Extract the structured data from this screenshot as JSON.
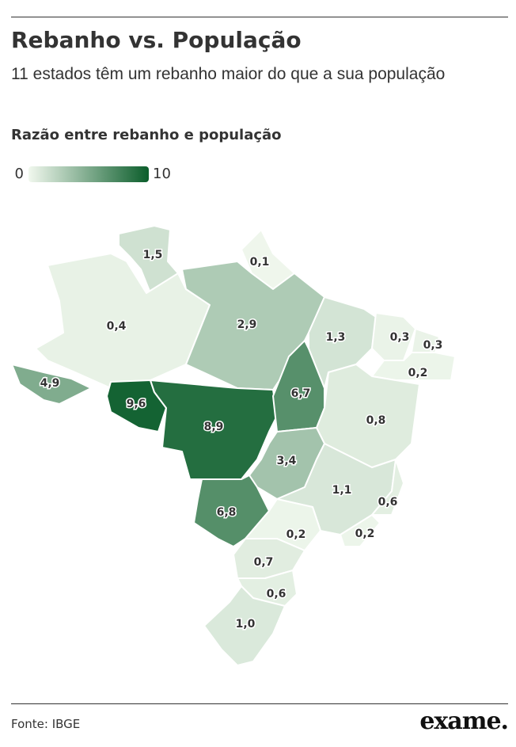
{
  "chart_data": {
    "type": "choropleth",
    "title": "Rebanho vs. População",
    "subtitle": "11 estados têm um rebanho maior do que a sua população",
    "legend_title": "Razão entre rebanho e população",
    "colorbar": {
      "lim": [
        0,
        10
      ],
      "ticks": [
        0,
        10
      ],
      "colors": [
        "#f1f8ee",
        "#0b5d2b"
      ]
    },
    "values": [
      1.5,
      0.1,
      0.4,
      2.9,
      1.3,
      0.3,
      0.3,
      0.2,
      4.9,
      9.6,
      8.9,
      6.7,
      0.8,
      3.4,
      1.1,
      0.6,
      6.8,
      0.2,
      0.2,
      0.7,
      0.6,
      1.0
    ],
    "value_labels": [
      "1,5",
      "0,1",
      "0,4",
      "2,9",
      "1,3",
      "0,3",
      "0,3",
      "0,2",
      "4,9",
      "9,6",
      "8,9",
      "6,7",
      "0,8",
      "3,4",
      "1,1",
      "0,6",
      "6,8",
      "0,2",
      "0,2",
      "0,7",
      "0,6",
      "1,0"
    ],
    "source": "Fonte: IBGE",
    "brand": "exame."
  }
}
